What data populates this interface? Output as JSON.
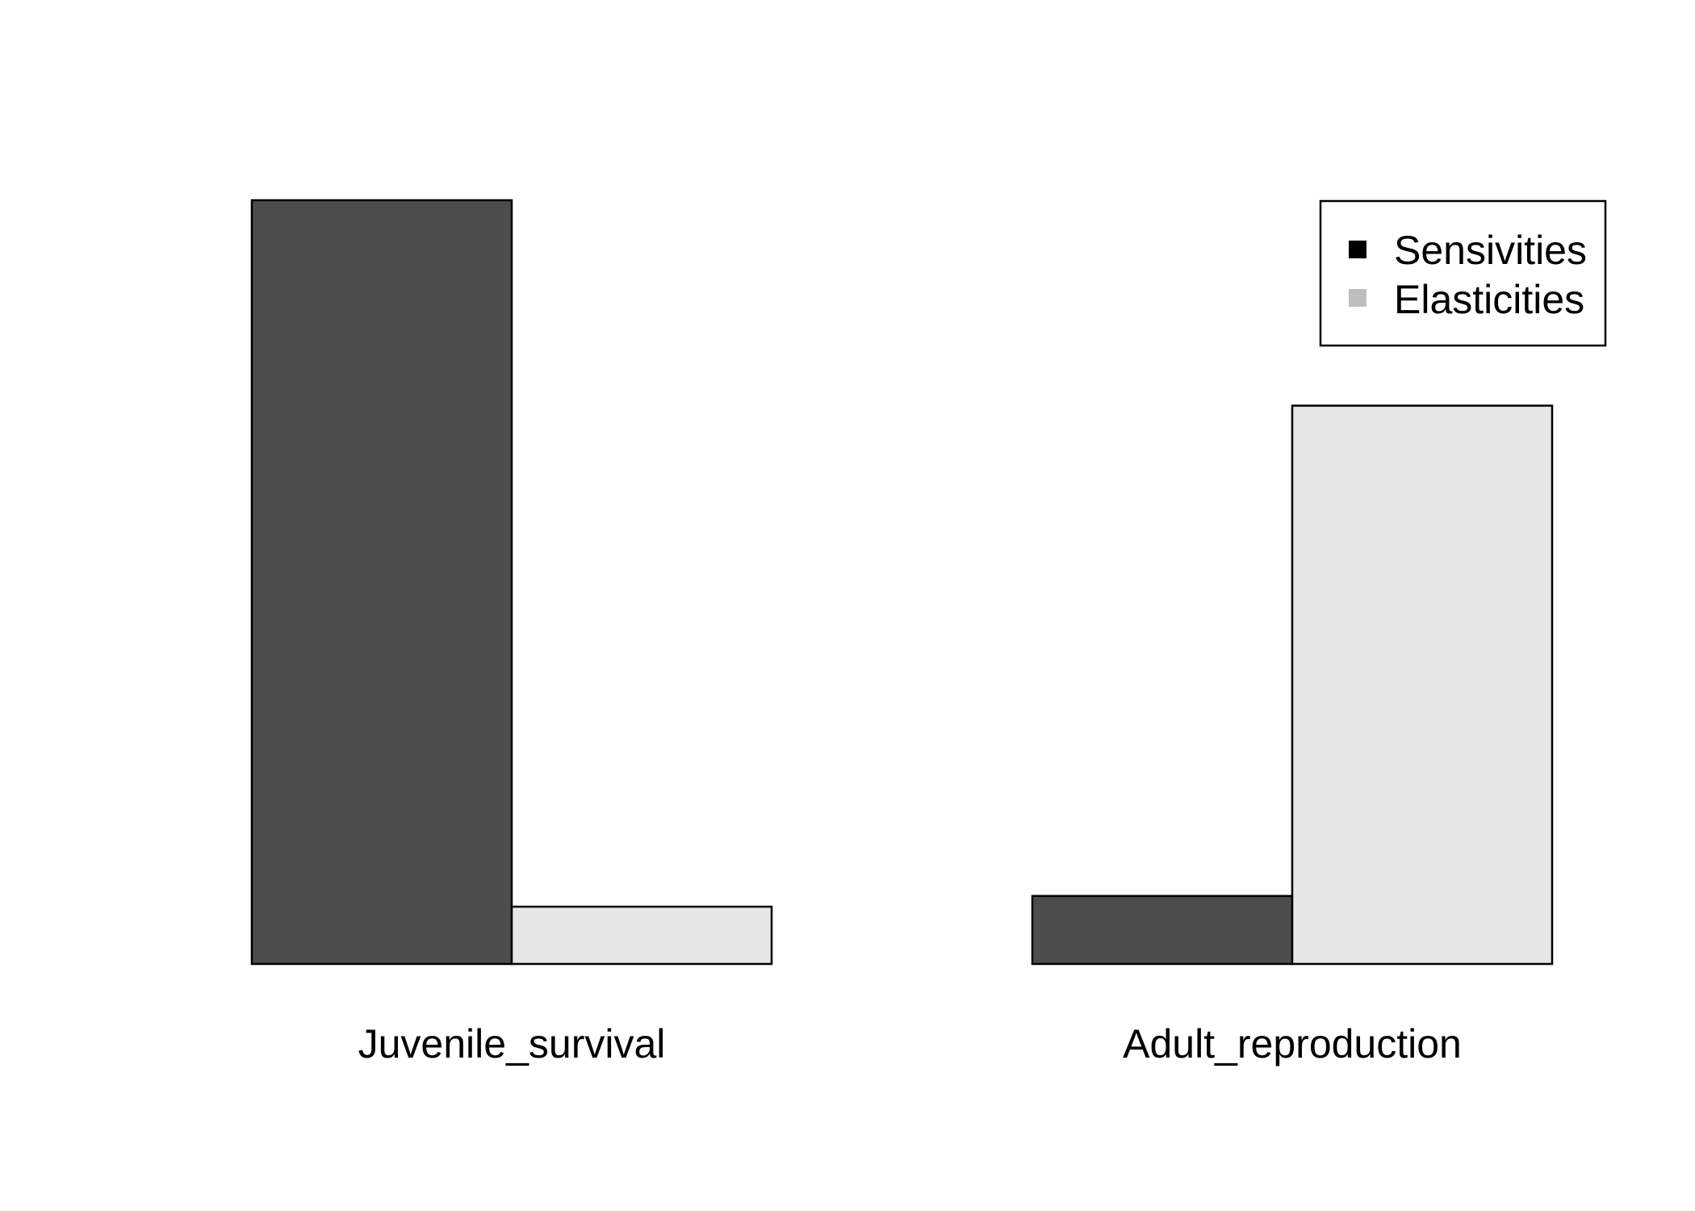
{
  "chart_data": {
    "type": "bar",
    "categories": [
      "Juvenile_survival",
      "Adult_reproduction"
    ],
    "series": [
      {
        "name": "Sensivities",
        "values": [
          1.0,
          0.089
        ],
        "fill": "#4d4d4d",
        "legend_color": "#000000"
      },
      {
        "name": "Elasticities",
        "values": [
          0.075,
          0.731
        ],
        "fill": "#e6e6e6",
        "legend_color": "#bebebe"
      }
    ],
    "ylim": [
      0,
      1.0
    ],
    "grid": false,
    "legend_position": "top-right",
    "title": "",
    "xlabel": "",
    "ylabel": ""
  }
}
